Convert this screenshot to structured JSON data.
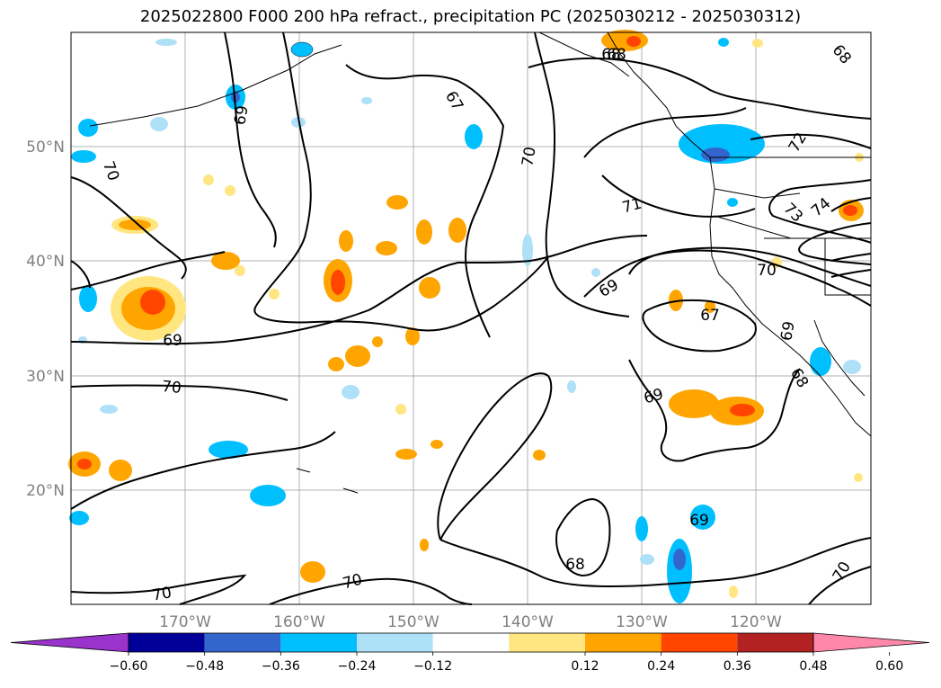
{
  "title": "2025022800 F000 200 hPa refract., precipitation PC (2025030212 - 2025030312)",
  "chart_data": {
    "type": "map",
    "lat_labels": [
      "50°N",
      "40°N",
      "30°N",
      "20°N"
    ],
    "lon_labels": [
      "170°W",
      "160°W",
      "150°W",
      "140°W",
      "130°W",
      "120°W"
    ],
    "contour_labels": [
      "68",
      "69",
      "67",
      "70",
      "70",
      "68",
      "71",
      "72",
      "73",
      "74",
      "70",
      "69",
      "67",
      "69",
      "68",
      "68",
      "69",
      "69",
      "70",
      "69",
      "68",
      "70",
      "70",
      "70"
    ],
    "colorbar": {
      "ticks": [
        "−0.60",
        "−0.48",
        "−0.36",
        "−0.24",
        "−0.12",
        "0.12",
        "0.24",
        "0.36",
        "0.48",
        "0.60"
      ],
      "colors": [
        "#9933cc",
        "#000099",
        "#3366cc",
        "#00bfff",
        "#aee0f8",
        "#ffffff",
        "#ffe680",
        "#ffa500",
        "#ff4500",
        "#b22222",
        "#ff88aa"
      ]
    }
  }
}
